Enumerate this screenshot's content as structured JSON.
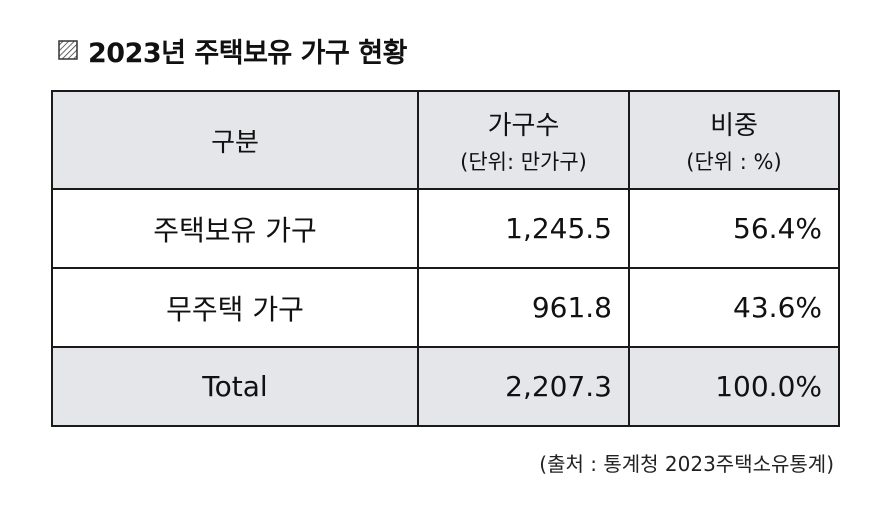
{
  "header": {
    "title": "2023년 주택보유 가구 현황"
  },
  "table": {
    "columns": [
      {
        "title": "구분"
      },
      {
        "title": "가구수",
        "unit": "(단위: 만가구)"
      },
      {
        "title": "비중",
        "unit": "(단위 : %)"
      }
    ],
    "rows": [
      [
        "주택보유 가구",
        "1,245.5",
        "56.4%"
      ],
      [
        "무주택 가구",
        "961.8",
        "43.6%"
      ],
      [
        "Total",
        "2,207.3",
        "100.0%"
      ]
    ]
  },
  "footer": {
    "source": "(출처 : 통계청 2023주택소유통계)"
  }
}
